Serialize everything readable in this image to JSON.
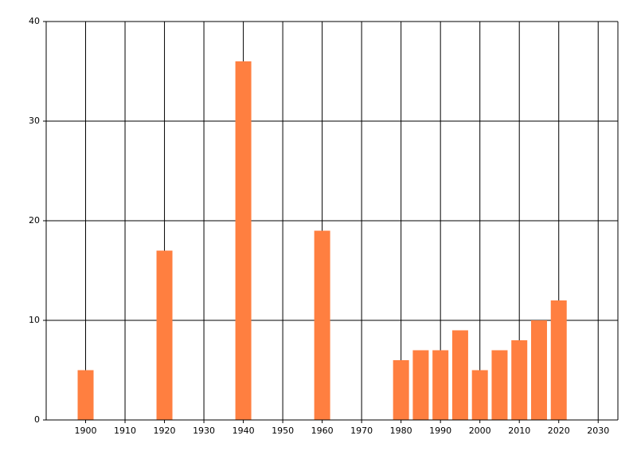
{
  "chart_data": {
    "type": "bar",
    "x": [
      1900,
      1920,
      1940,
      1960,
      1980,
      1985,
      1990,
      1995,
      2000,
      2005,
      2010,
      2015,
      2020
    ],
    "values": [
      5,
      17,
      36,
      19,
      6,
      7,
      7,
      9,
      5,
      7,
      8,
      10,
      12
    ],
    "color": "#ff7f40",
    "xlim": [
      1890,
      2035
    ],
    "xticks": [
      1900,
      1910,
      1920,
      1930,
      1940,
      1950,
      1960,
      1970,
      1980,
      1990,
      2000,
      2010,
      2020,
      2030
    ],
    "ylim": [
      0,
      40
    ],
    "yticks": [
      0,
      10,
      20,
      30,
      40
    ],
    "grid": true
  }
}
